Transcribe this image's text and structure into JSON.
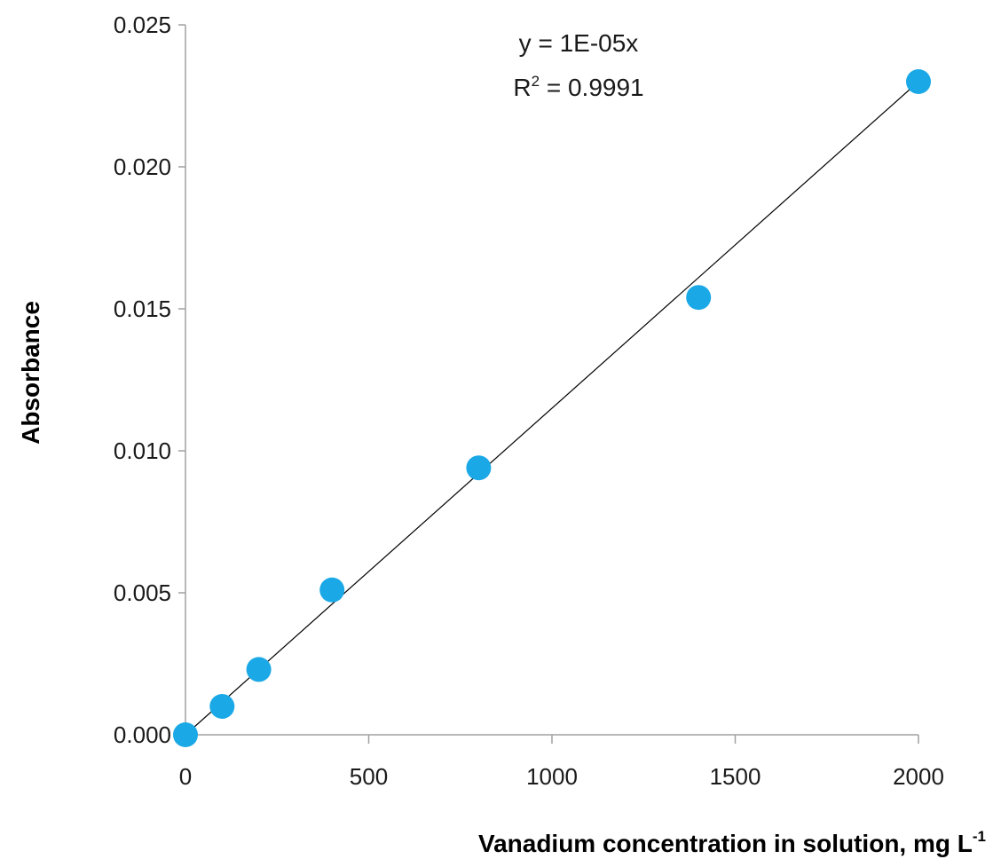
{
  "chart_data": {
    "type": "scatter",
    "title": "",
    "xlabel": "Vanadium concentration in solution, mg L",
    "xlabel_superscript": "-1",
    "ylabel": "Absorbance",
    "xlim": [
      0,
      2000
    ],
    "ylim": [
      0,
      0.025
    ],
    "x_ticks": [
      0,
      500,
      1000,
      1500,
      2000
    ],
    "x_tick_labels": [
      "0",
      "500",
      "1000",
      "1500",
      "2000"
    ],
    "y_ticks": [
      0,
      0.005,
      0.01,
      0.015,
      0.02,
      0.025
    ],
    "y_tick_labels": [
      "0.000",
      "0.005",
      "0.010",
      "0.015",
      "0.020",
      "0.025"
    ],
    "grid": false,
    "legend": "none",
    "series": [
      {
        "x": [
          0,
          100,
          200,
          400,
          800,
          1400,
          2000
        ],
        "y": [
          0.0,
          0.001,
          0.0023,
          0.0051,
          0.0094,
          0.0154,
          0.023
        ],
        "marker_color": "#1aa8e6"
      }
    ],
    "trendline": {
      "type": "linear",
      "slope": 1.15e-05,
      "intercept": 0,
      "color": "#000000"
    },
    "annotations": {
      "equation": "y = 1E-05x",
      "r2_prefix": "R",
      "r2_exponent": "2",
      "r2_suffix": " = 0.9991"
    }
  }
}
